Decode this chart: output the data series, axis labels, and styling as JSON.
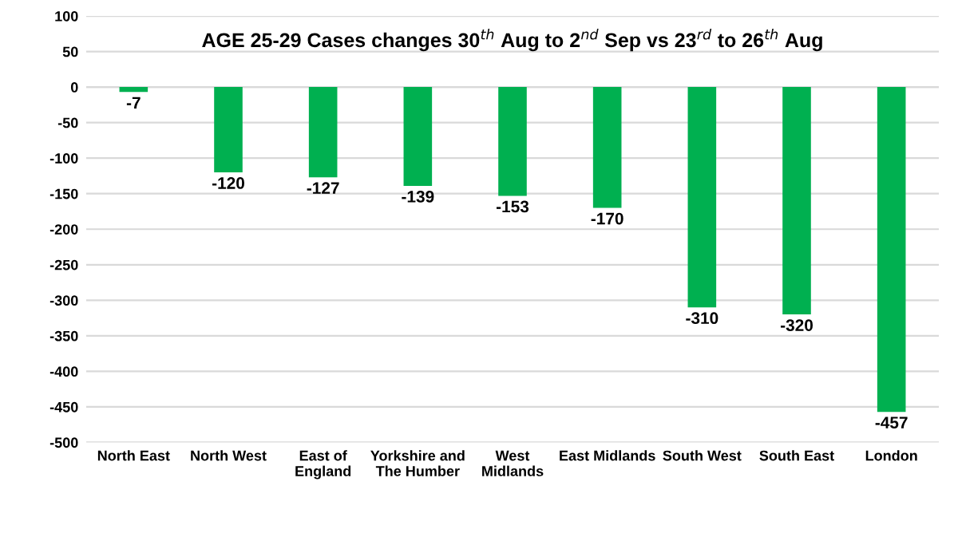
{
  "chart_data": {
    "type": "bar",
    "title": "AGE 25-29 Cases changes 30$^{th}$ Aug to 2$^{nd}$ Sep vs 23$^{rd}$ to 26$^{th}$ Aug",
    "categories": [
      "North East",
      "North West",
      "East of\nEngland",
      "Yorkshire and\nThe Humber",
      "West\nMidlands",
      "East Midlands",
      "South West",
      "South East",
      "London"
    ],
    "values": [
      -7,
      -120,
      -127,
      -139,
      -153,
      -170,
      -310,
      -320,
      -457
    ],
    "color": "#00b050",
    "ylim": [
      -500,
      100
    ],
    "yticks": [
      -500,
      -450,
      -400,
      -350,
      -300,
      -250,
      -200,
      -150,
      -100,
      -50,
      0,
      50,
      100
    ],
    "grid": "y",
    "data_labels": true
  }
}
